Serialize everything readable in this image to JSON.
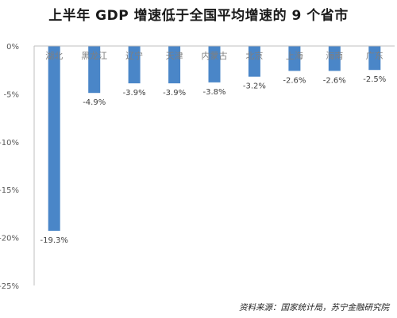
{
  "chart_data": {
    "type": "bar",
    "title": "上半年 GDP 增速低于全国平均增速的 9 个省市",
    "categories": [
      "湖北",
      "黑龙江",
      "辽宁",
      "天津",
      "内蒙古",
      "北京",
      "上海",
      "海南",
      "广东"
    ],
    "values": [
      -19.3,
      -4.9,
      -3.9,
      -3.9,
      -3.8,
      -3.2,
      -2.6,
      -2.6,
      -2.5
    ],
    "data_labels": [
      "-19.3%",
      "-4.9%",
      "-3.9%",
      "-3.9%",
      "-3.8%",
      "-3.2%",
      "-2.6%",
      "-2.6%",
      "-2.5%"
    ],
    "y_ticks": [
      0,
      -5,
      -10,
      -15,
      -20,
      -25
    ],
    "y_tick_labels": [
      "0%",
      "-5%",
      "-10%",
      "-15%",
      "-20%",
      "-25%"
    ],
    "ylim": [
      -25,
      0
    ],
    "xlabel": "",
    "ylabel": "",
    "grid": false,
    "bar_color": "#4a86c8",
    "axis_color": "#bfbfbf",
    "category_label_color": "#7f7f7f",
    "source": "资料来源：国家统计局，苏宁金融研究院"
  }
}
